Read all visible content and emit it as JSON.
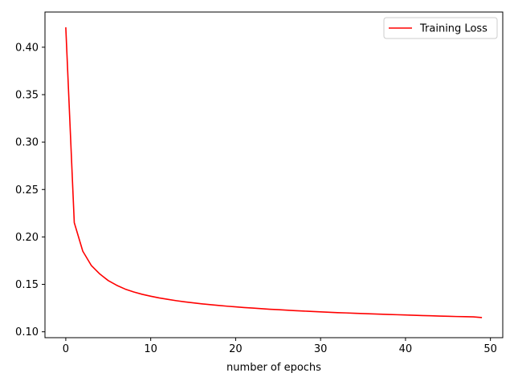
{
  "chart_data": {
    "type": "line",
    "title": "",
    "xlabel": "number of epochs",
    "ylabel": "",
    "xlim": [
      -2.45,
      51.45
    ],
    "ylim": [
      0.0938,
      0.4371
    ],
    "x_ticks": [
      0,
      10,
      20,
      30,
      40,
      50
    ],
    "x_tick_labels": [
      "0",
      "10",
      "20",
      "30",
      "40",
      "50"
    ],
    "y_ticks": [
      0.1,
      0.15,
      0.2,
      0.25,
      0.3,
      0.35,
      0.4
    ],
    "y_tick_labels": [
      "0.10",
      "0.15",
      "0.20",
      "0.25",
      "0.30",
      "0.35",
      "0.40"
    ],
    "grid": false,
    "legend_position": "upper right",
    "series": [
      {
        "name": "Training Loss",
        "color": "#ff0000",
        "x": [
          0,
          1,
          2,
          3,
          4,
          5,
          6,
          7,
          8,
          9,
          10,
          11,
          12,
          13,
          14,
          15,
          16,
          17,
          18,
          19,
          20,
          21,
          22,
          23,
          24,
          25,
          26,
          27,
          28,
          29,
          30,
          31,
          32,
          33,
          34,
          35,
          36,
          37,
          38,
          39,
          40,
          41,
          42,
          43,
          44,
          45,
          46,
          47,
          48,
          49
        ],
        "values": [
          0.421,
          0.215,
          0.185,
          0.17,
          0.161,
          0.154,
          0.149,
          0.145,
          0.142,
          0.1395,
          0.1375,
          0.1357,
          0.1342,
          0.1328,
          0.1316,
          0.1305,
          0.1295,
          0.1286,
          0.1278,
          0.127,
          0.1263,
          0.1256,
          0.125,
          0.1244,
          0.1238,
          0.1233,
          0.1228,
          0.1223,
          0.1219,
          0.1214,
          0.121,
          0.1206,
          0.1202,
          0.1199,
          0.1195,
          0.1192,
          0.1189,
          0.1186,
          0.1183,
          0.118,
          0.1177,
          0.1174,
          0.1171,
          0.1169,
          0.1166,
          0.1164,
          0.1161,
          0.1159,
          0.1157,
          0.115
        ]
      }
    ]
  }
}
